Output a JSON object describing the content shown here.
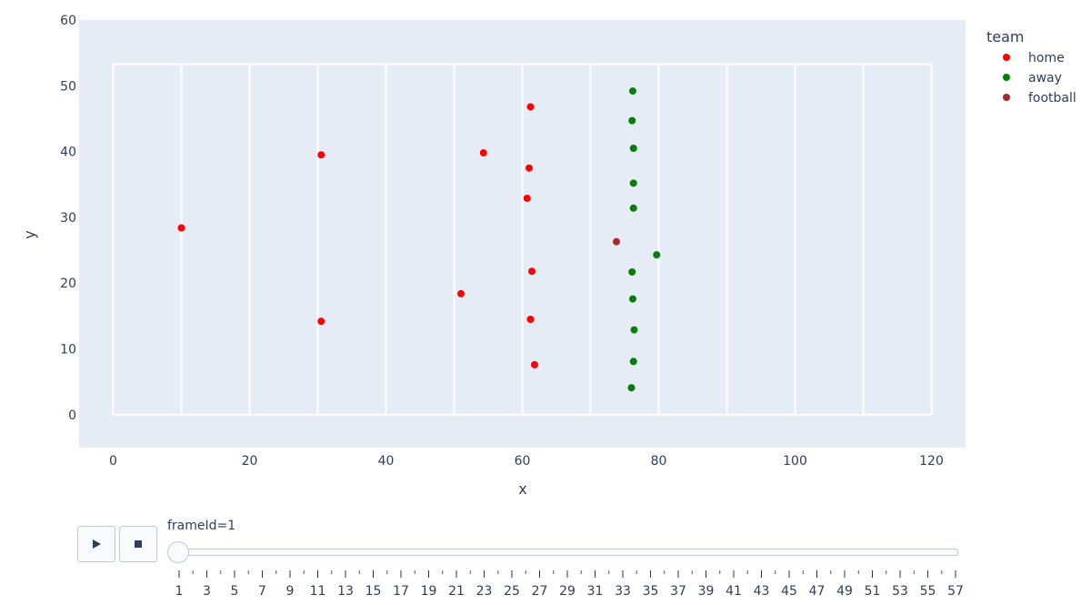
{
  "chart_data": {
    "type": "scatter",
    "title": "",
    "xlabel": "x",
    "ylabel": "y",
    "xlim": [
      -5,
      125
    ],
    "ylim": [
      -5,
      60
    ],
    "xticks": [
      0,
      20,
      40,
      60,
      80,
      100,
      120
    ],
    "yticks": [
      0,
      10,
      20,
      30,
      40,
      50,
      60
    ],
    "grid": false,
    "background": "#e5ecf6",
    "field": {
      "x_range": [
        0,
        120
      ],
      "y_range": [
        0,
        53.3
      ],
      "yard_lines": [
        10,
        20,
        30,
        40,
        50,
        60,
        70,
        80,
        90,
        100,
        110
      ],
      "line_color": "#ffffff"
    },
    "legend": {
      "title": "team",
      "placement": "right"
    },
    "series": [
      {
        "name": "home",
        "color": "#ff0000",
        "points": [
          [
            10,
            28.4
          ],
          [
            30.5,
            39.5
          ],
          [
            30.5,
            14.2
          ],
          [
            54.3,
            39.8
          ],
          [
            61.2,
            46.8
          ],
          [
            61,
            37.5
          ],
          [
            60.7,
            32.9
          ],
          [
            51,
            18.4
          ],
          [
            61.4,
            21.8
          ],
          [
            61.2,
            14.5
          ],
          [
            61.8,
            7.6
          ]
        ]
      },
      {
        "name": "away",
        "color": "#008000",
        "points": [
          [
            76.2,
            49.2
          ],
          [
            76.1,
            44.7
          ],
          [
            76.3,
            40.5
          ],
          [
            76.3,
            35.2
          ],
          [
            76.3,
            31.4
          ],
          [
            79.7,
            24.3
          ],
          [
            76.1,
            21.7
          ],
          [
            76.2,
            17.6
          ],
          [
            76.4,
            12.9
          ],
          [
            76.3,
            8.1
          ],
          [
            76,
            4.1
          ]
        ]
      },
      {
        "name": "football",
        "color": "#a52a2a",
        "points": [
          [
            73.8,
            26.3
          ]
        ]
      }
    ]
  },
  "animation": {
    "play_label": "play-icon",
    "stop_label": "stop-icon",
    "current_label": "frameId=1",
    "current_value": 1,
    "frame_min": 1,
    "frame_max": 57,
    "tick_labels": [
      "1",
      "3",
      "5",
      "7",
      "9",
      "11",
      "13",
      "15",
      "17",
      "19",
      "21",
      "23",
      "25",
      "27",
      "29",
      "31",
      "33",
      "35",
      "37",
      "39",
      "41",
      "43",
      "45",
      "47",
      "49",
      "51",
      "53",
      "55",
      "57"
    ]
  }
}
